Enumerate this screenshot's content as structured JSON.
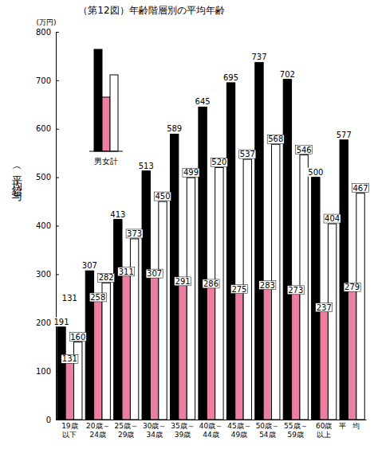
{
  "chart_data": {
    "type": "bar",
    "title": "（第12図）年齢階層別の平均年齢",
    "unit": "(万円)",
    "y_label": "（平均給与）",
    "categories": [
      "19歳以下",
      "20歳～24歳",
      "25歳～29歳",
      "30歳～34歳",
      "35歳～39歳",
      "40歳～44歳",
      "45歳～49歳",
      "50歳～54歳",
      "55歳～59歳",
      "60歳以上",
      "平均"
    ],
    "series": [
      {
        "color": "#000000",
        "values": [
          191,
          307,
          413,
          513,
          589,
          645,
          695,
          737,
          702,
          500,
          577
        ]
      },
      {
        "color": "#ea7fa0",
        "values": [
          131,
          258,
          311,
          307,
          291,
          286,
          275,
          283,
          273,
          237,
          279
        ]
      },
      {
        "color": "#ffffff",
        "values": [
          160,
          282,
          373,
          450,
          499,
          520,
          537,
          568,
          546,
          404,
          467
        ]
      }
    ],
    "ylim": [
      0,
      800
    ],
    "yticks": [
      0,
      100,
      200,
      300,
      400,
      500,
      600,
      700,
      800
    ],
    "grid": false,
    "data_labels": true,
    "legend": "top-left",
    "legend_title": "男女計",
    "annotations": [
      {
        "text": "131",
        "x": 0,
        "y": 250
      }
    ]
  }
}
